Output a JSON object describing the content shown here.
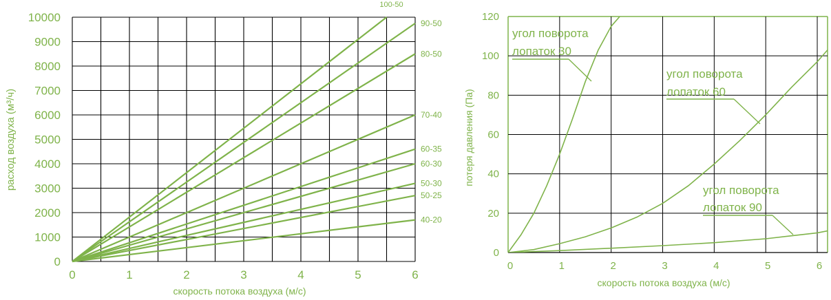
{
  "colors": {
    "series": "#7fb34a",
    "text": "#7fb34a",
    "grid": "#000000",
    "background": "#ffffff"
  },
  "chart_data": [
    {
      "type": "line",
      "title": "",
      "xlabel": "скорость потока воздуха (м/с)",
      "ylabel": "расход воздуха (м³/ч)",
      "xlim": [
        0,
        6
      ],
      "ylim": [
        0,
        10000
      ],
      "x_ticks": [
        0,
        1,
        2,
        3,
        4,
        5,
        6
      ],
      "y_ticks": [
        0,
        1000,
        2000,
        3000,
        4000,
        5000,
        6000,
        7000,
        8000,
        9000,
        10000
      ],
      "grid": true,
      "series": [
        {
          "name": "100-50",
          "x": [
            0,
            5.5
          ],
          "y": [
            0,
            10000
          ]
        },
        {
          "name": "90-50",
          "x": [
            0,
            6
          ],
          "y": [
            0,
            9750
          ]
        },
        {
          "name": "80-50",
          "x": [
            0,
            6
          ],
          "y": [
            0,
            8500
          ]
        },
        {
          "name": "70-40",
          "x": [
            0,
            6
          ],
          "y": [
            0,
            6000
          ]
        },
        {
          "name": "60-35",
          "x": [
            0,
            6
          ],
          "y": [
            0,
            4600
          ]
        },
        {
          "name": "60-30",
          "x": [
            0,
            6
          ],
          "y": [
            0,
            4000
          ]
        },
        {
          "name": "50-30",
          "x": [
            0,
            6
          ],
          "y": [
            0,
            3200
          ]
        },
        {
          "name": "50-25",
          "x": [
            0,
            6
          ],
          "y": [
            0,
            2700
          ]
        },
        {
          "name": "40-20",
          "x": [
            0,
            6
          ],
          "y": [
            0,
            1700
          ]
        }
      ]
    },
    {
      "type": "line",
      "title": "",
      "xlabel": "скорость потока воздуха (м/с)",
      "ylabel": "потеря давления (Па)",
      "xlim": [
        0,
        6.2
      ],
      "ylim": [
        0,
        120
      ],
      "x_ticks": [
        0,
        1,
        2,
        3,
        4,
        5,
        6
      ],
      "y_ticks": [
        0,
        20,
        40,
        60,
        80,
        100,
        120
      ],
      "grid": true,
      "series": [
        {
          "name": "угол поворота лопаток 30",
          "x": [
            0,
            0.25,
            0.5,
            0.75,
            1.0,
            1.25,
            1.5,
            1.75,
            2.0,
            2.2
          ],
          "y": [
            0,
            9,
            20,
            34,
            50,
            68,
            87,
            103,
            115,
            121
          ]
        },
        {
          "name": "угол поворота лопаток 60",
          "x": [
            0,
            0.5,
            1.0,
            1.5,
            2.0,
            2.5,
            3.0,
            3.5,
            4.0,
            4.5,
            5.0,
            5.5,
            6.0,
            6.2
          ],
          "y": [
            0,
            1.5,
            4.5,
            8,
            12.5,
            18,
            25,
            34,
            45,
            57,
            70,
            84,
            97,
            103
          ]
        },
        {
          "name": "угол поворота лопаток 90",
          "x": [
            0,
            1,
            2,
            3,
            4,
            5,
            5.5,
            6.0,
            6.2
          ],
          "y": [
            0,
            1,
            2.2,
            3.5,
            5,
            7,
            8.5,
            10,
            11
          ]
        }
      ],
      "annotations": [
        {
          "line1": "угол поворота",
          "line2": "лопаток 30"
        },
        {
          "line1": "угол поворота",
          "line2": "лопаток 60"
        },
        {
          "line1": "угол поворота",
          "line2": "лопаток 90"
        }
      ]
    }
  ]
}
